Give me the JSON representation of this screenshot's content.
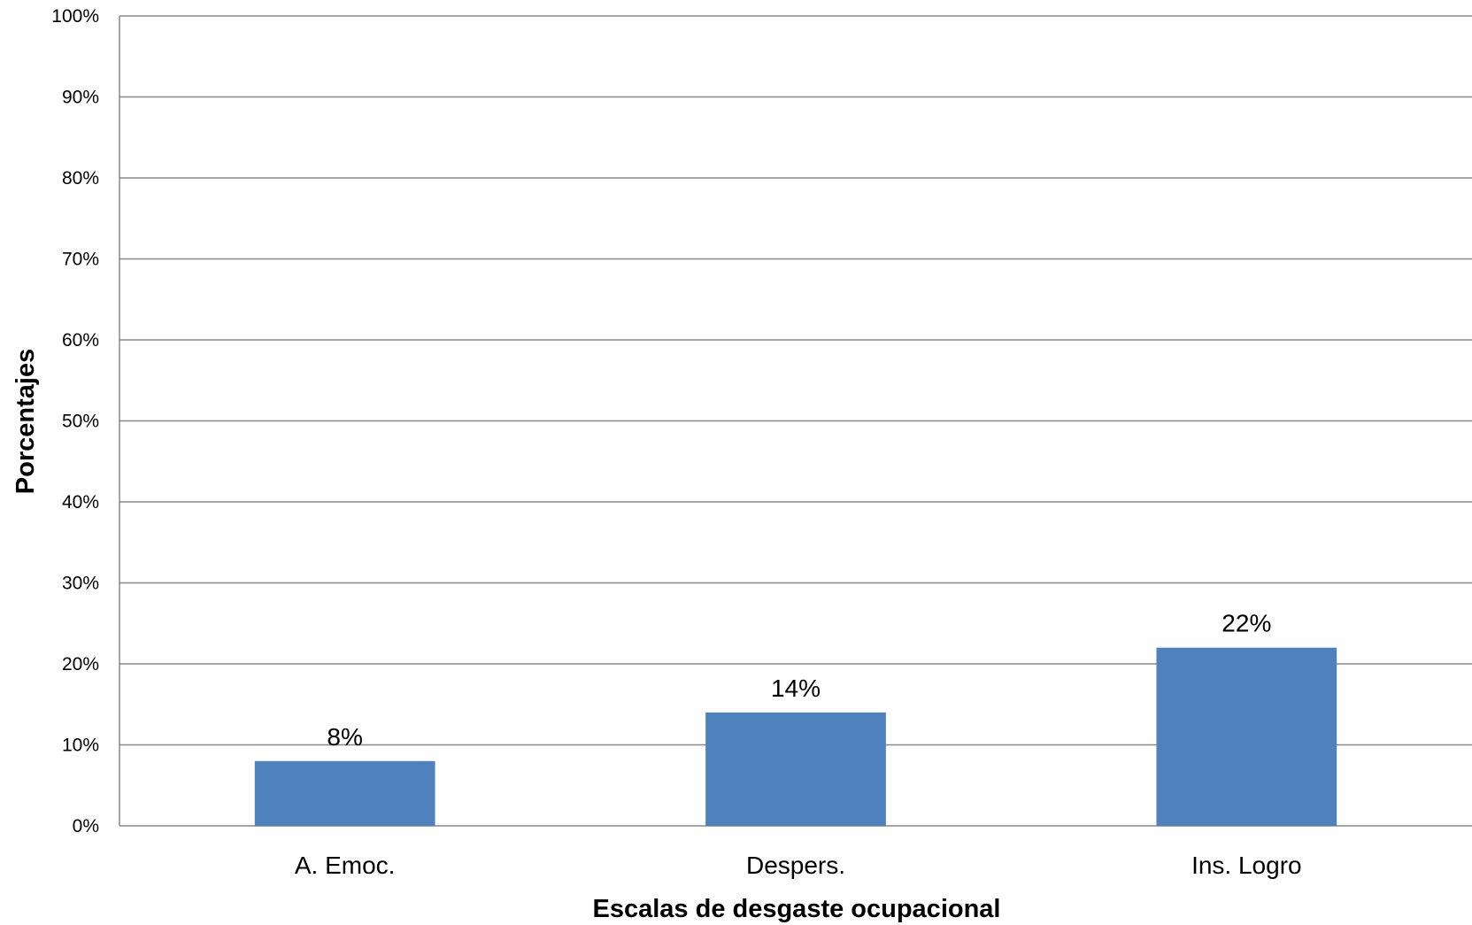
{
  "chart_data": {
    "type": "bar",
    "categories": [
      "A. Emoc.",
      "Despers.",
      "Ins. Logro"
    ],
    "series": [
      {
        "values": [
          8,
          14,
          22
        ],
        "color": "#4f81bd"
      }
    ],
    "data_labels": [
      "8%",
      "14%",
      "22%"
    ],
    "xlabel": "Escalas de desgaste ocupacional",
    "ylabel": "Porcentajes",
    "ylim": [
      0,
      100
    ],
    "yticks": [
      "0%",
      "10%",
      "20%",
      "30%",
      "40%",
      "50%",
      "60%",
      "70%",
      "80%",
      "90%",
      "100%"
    ],
    "grid": true,
    "legend": false
  }
}
